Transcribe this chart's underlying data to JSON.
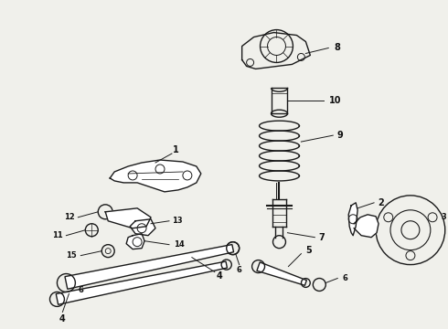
{
  "bg_color": "#f0f0eb",
  "line_color": "#1a1a1a",
  "label_color": "#111111",
  "figsize": [
    4.9,
    3.6
  ],
  "dpi": 100
}
